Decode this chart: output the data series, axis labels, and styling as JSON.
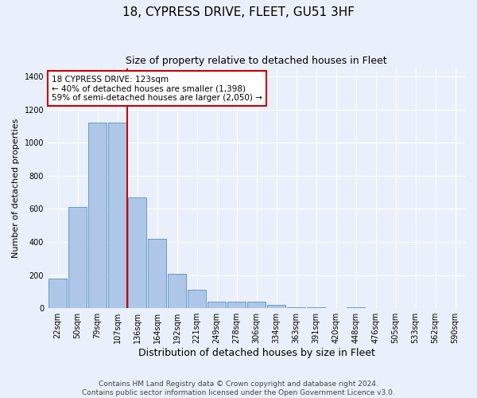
{
  "title": "18, CYPRESS DRIVE, FLEET, GU51 3HF",
  "subtitle": "Size of property relative to detached houses in Fleet",
  "xlabel": "Distribution of detached houses by size in Fleet",
  "ylabel": "Number of detached properties",
  "categories": [
    "22sqm",
    "50sqm",
    "79sqm",
    "107sqm",
    "136sqm",
    "164sqm",
    "192sqm",
    "221sqm",
    "249sqm",
    "278sqm",
    "306sqm",
    "334sqm",
    "363sqm",
    "391sqm",
    "420sqm",
    "448sqm",
    "476sqm",
    "505sqm",
    "533sqm",
    "562sqm",
    "590sqm"
  ],
  "values": [
    180,
    610,
    1120,
    1120,
    670,
    420,
    210,
    110,
    40,
    40,
    40,
    20,
    5,
    5,
    0,
    5,
    0,
    0,
    0,
    0,
    0
  ],
  "bar_color": "#aec6e8",
  "bar_edge_color": "#5a8fc2",
  "vline_x": 3.5,
  "vline_color": "#cc0000",
  "annotation_line1": "18 CYPRESS DRIVE: 123sqm",
  "annotation_line2": "← 40% of detached houses are smaller (1,398)",
  "annotation_line3": "59% of semi-detached houses are larger (2,050) →",
  "annotation_box_color": "#ffffff",
  "annotation_box_edge_color": "#cc0000",
  "ylim": [
    0,
    1450
  ],
  "yticks": [
    0,
    200,
    400,
    600,
    800,
    1000,
    1200,
    1400
  ],
  "background_color": "#eaf0fb",
  "grid_color": "#ffffff",
  "footer": "Contains HM Land Registry data © Crown copyright and database right 2024.\nContains public sector information licensed under the Open Government Licence v3.0.",
  "title_fontsize": 11,
  "subtitle_fontsize": 9,
  "xlabel_fontsize": 9,
  "ylabel_fontsize": 8,
  "tick_fontsize": 7,
  "annotation_fontsize": 7.5,
  "footer_fontsize": 6.5
}
